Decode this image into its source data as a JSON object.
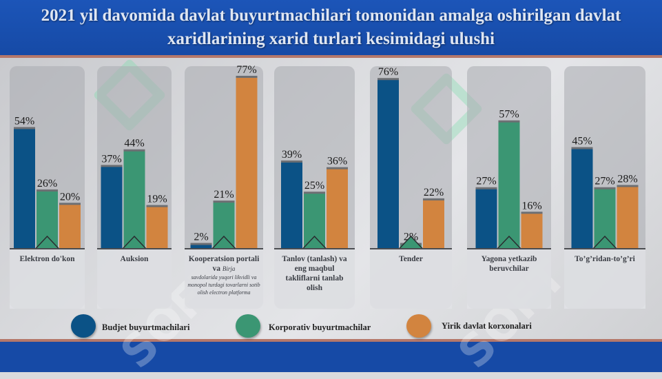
{
  "title": "2021 yil davomida davlat buyurtmachilari tomonidan amalga oshirilgan davlat xaridlarining xarid turlari kesimidagi ulushi",
  "watermark_text": "SOFT",
  "colors": {
    "budjet": "#0b5286",
    "korporativ": "#3b9673",
    "yirik": "#d2843f",
    "panel": "#a9acb1"
  },
  "chart_data": {
    "type": "bar",
    "title": "2021 yil davomida davlat buyurtmachilari tomonidan amalga oshirilgan davlat xaridlarining xarid turlari kesimidagi ulushi",
    "ylim": [
      0,
      100
    ],
    "categories": [
      "Elektron do'kon",
      "Auksion",
      "Kooperatsion portali va Birja savdolarida yuqori likvidli va monopol turdagi tovarlarni sotib olish electron platforma",
      "Tanlov (tanlash) va eng maqbul takliflarni tanlab olish",
      "Tender",
      "Yagona yetkazib beruvchilar",
      "To’g’ridan-to’g’ri"
    ],
    "series": [
      {
        "name": "Budjet buyurtmachilari",
        "values": [
          54,
          37,
          2,
          39,
          76,
          27,
          45
        ]
      },
      {
        "name": "Korporativ buyurtmachilar",
        "values": [
          26,
          44,
          21,
          25,
          2,
          57,
          27
        ]
      },
      {
        "name": "Yirik davlat korxonalari",
        "values": [
          20,
          19,
          77,
          36,
          22,
          16,
          28
        ]
      }
    ],
    "value_labels": [
      [
        "54%",
        "26%",
        "20%"
      ],
      [
        "37%",
        "44%",
        "19%"
      ],
      [
        "2%",
        "21%",
        "77%"
      ],
      [
        "39%",
        "25%",
        "36%"
      ],
      [
        "76%",
        "2%",
        "22%"
      ],
      [
        "27%",
        "57%",
        "16%"
      ],
      [
        "45%",
        "27%",
        "28%"
      ]
    ],
    "legend_position": "bottom"
  },
  "panels": [
    {
      "label": "Elektron do'kon",
      "sub": ""
    },
    {
      "label": "Auksion",
      "sub": ""
    },
    {
      "label": "Kooperatsion portali va",
      "inline_small": "Birja",
      "sub": "savdolarida yuqori likvidli va monopol turdagi tovarlarni sotib olish electron platforma"
    },
    {
      "label": "Tanlov (tanlash) va eng maqbul takliflarni tanlab olish",
      "sub": ""
    },
    {
      "label": "Tender",
      "sub": ""
    },
    {
      "label": "Yagona yetkazib beruvchilar",
      "sub": ""
    },
    {
      "label": "To’g’ridan-to’g’ri",
      "sub": ""
    }
  ],
  "legend": [
    {
      "label": "Budjet buyurtmachilari",
      "color_key": "budjet"
    },
    {
      "label": "Korporativ buyurtmachilar",
      "color_key": "korporativ"
    },
    {
      "label": "Yirik davlat korxonalari",
      "color_key": "yirik"
    }
  ]
}
